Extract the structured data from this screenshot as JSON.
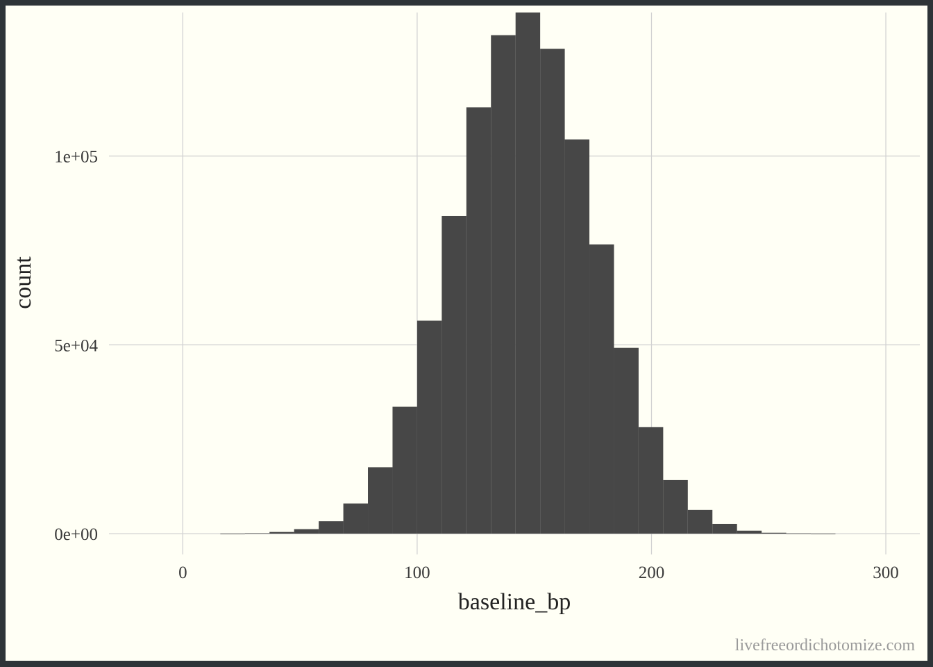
{
  "chart_data": {
    "type": "bar",
    "subtype": "histogram",
    "xlabel": "baseline_bp",
    "ylabel": "count",
    "xlim": [
      -31.5,
      314.5
    ],
    "ylim": [
      -5500,
      138000
    ],
    "x_ticks": [
      0,
      100,
      200,
      300
    ],
    "x_tick_labels": [
      "0",
      "100",
      "200",
      "300"
    ],
    "y_ticks": [
      0,
      50000,
      100000
    ],
    "y_tick_labels": [
      "0e+00",
      "5e+04",
      "1e+05"
    ],
    "grid": true,
    "bar_color": "#474747",
    "bins": [
      {
        "x0": 16,
        "x1": 26.5,
        "count": 20
      },
      {
        "x0": 26.5,
        "x1": 37,
        "count": 120
      },
      {
        "x0": 37,
        "x1": 47.5,
        "count": 450
      },
      {
        "x0": 47.5,
        "x1": 58,
        "count": 1200
      },
      {
        "x0": 58,
        "x1": 68.5,
        "count": 3300
      },
      {
        "x0": 68.5,
        "x1": 79,
        "count": 8000
      },
      {
        "x0": 79,
        "x1": 89.5,
        "count": 17600
      },
      {
        "x0": 89.5,
        "x1": 100,
        "count": 33600
      },
      {
        "x0": 100,
        "x1": 110.5,
        "count": 56400
      },
      {
        "x0": 110.5,
        "x1": 121,
        "count": 84100
      },
      {
        "x0": 121,
        "x1": 131.5,
        "count": 112900
      },
      {
        "x0": 131.5,
        "x1": 142,
        "count": 132000
      },
      {
        "x0": 142,
        "x1": 152.5,
        "count": 138000
      },
      {
        "x0": 152.5,
        "x1": 163,
        "count": 128400
      },
      {
        "x0": 163,
        "x1": 173.5,
        "count": 104400
      },
      {
        "x0": 173.5,
        "x1": 184,
        "count": 76600
      },
      {
        "x0": 184,
        "x1": 194.5,
        "count": 49200
      },
      {
        "x0": 194.5,
        "x1": 205,
        "count": 28200
      },
      {
        "x0": 205,
        "x1": 215.5,
        "count": 14200
      },
      {
        "x0": 215.5,
        "x1": 226,
        "count": 6300
      },
      {
        "x0": 226,
        "x1": 236.5,
        "count": 2600
      },
      {
        "x0": 236.5,
        "x1": 247,
        "count": 800
      },
      {
        "x0": 247,
        "x1": 257.5,
        "count": 250
      },
      {
        "x0": 257.5,
        "x1": 268,
        "count": 80
      },
      {
        "x0": 268,
        "x1": 278.5,
        "count": 20
      }
    ]
  },
  "watermark": "livefreeordichotomize.com"
}
